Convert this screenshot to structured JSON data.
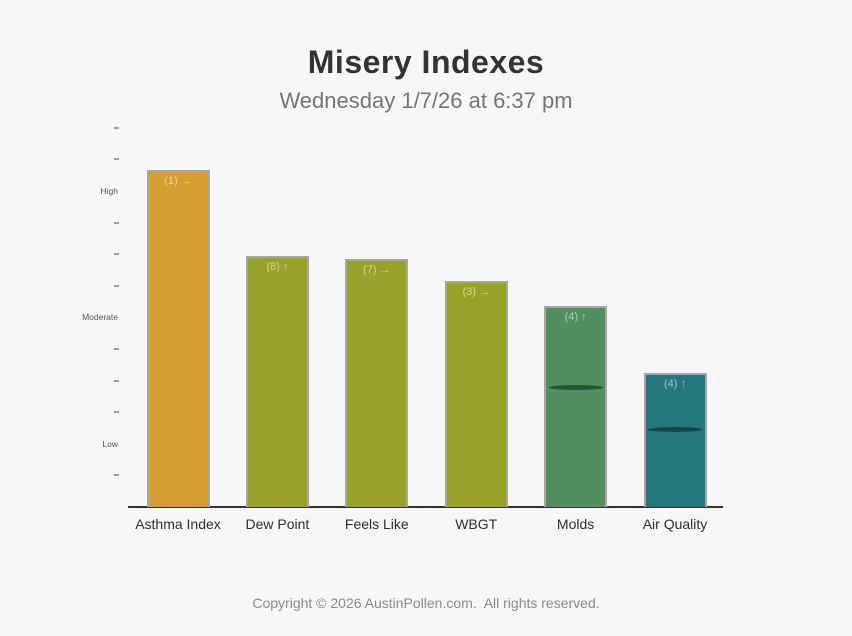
{
  "header": {
    "title": "Misery Indexes",
    "subtitle": "Wednesday 1/7/26 at 6:37 pm"
  },
  "footer": {
    "copyright": "Copyright © 2026 AustinPollen.com.  All rights reserved."
  },
  "colors": {
    "background": "#f7f7f7",
    "title_text": "#333333",
    "subtitle_text": "#757575",
    "axis_line": "#333333",
    "bar_border": "#a6a6a6",
    "bar_label_text": "rgba(255,255,255,0.55)"
  },
  "chart_data": {
    "type": "bar",
    "title": "Misery Indexes",
    "subtitle": "Wednesday 1/7/26 at 6:37 pm",
    "xlabel": "",
    "ylabel": "",
    "ylim": [
      0,
      12
    ],
    "grid": false,
    "legend_position": "none",
    "y_level_labels": [
      {
        "value": 10,
        "label": "High"
      },
      {
        "value": 6,
        "label": "Moderate"
      },
      {
        "value": 2,
        "label": "Low"
      }
    ],
    "y_tick_values": [
      1,
      3,
      4,
      5,
      7,
      8,
      9,
      11,
      12
    ],
    "categories": [
      "Asthma Index",
      "Dew Point",
      "Feels Like",
      "WBGT",
      "Molds",
      "Air Quality"
    ],
    "values": [
      10.65,
      7.95,
      7.85,
      7.15,
      6.35,
      4.25
    ],
    "bar_labels": [
      "(1) →",
      "(8) ↑",
      "(7) →",
      "(3) →",
      "(4) ↑",
      "(4) ↑"
    ],
    "bar_colors": [
      "#d49e31",
      "#98a22a",
      "#98a22a",
      "#98a22a",
      "#538e60",
      "#26777b"
    ],
    "marker_values": [
      null,
      null,
      null,
      null,
      3.85,
      2.5
    ],
    "marker_colors": [
      null,
      null,
      null,
      null,
      "#2c5338",
      "#14474b"
    ]
  }
}
